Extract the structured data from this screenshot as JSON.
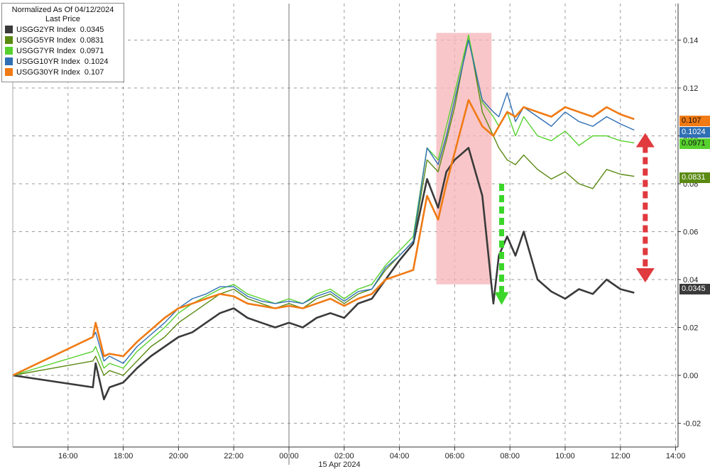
{
  "legend": {
    "title": "Normalized As Of 04/12/2024",
    "subtitle": "Last Price",
    "items": [
      {
        "name": "USGG2YR Index",
        "value": "0.0345",
        "color": "#3a3a3a"
      },
      {
        "name": "USGG5YR Index",
        "value": "0.0831",
        "color": "#5a8a12"
      },
      {
        "name": "USGG7YR Index",
        "value": "0.0971",
        "color": "#57d12e"
      },
      {
        "name": "USGG10YR Index",
        "value": "0.1024",
        "color": "#2f6fb3"
      },
      {
        "name": "USGG30YR Index",
        "value": "0.107",
        "color": "#f07a14"
      }
    ]
  },
  "date_label": "15 Apr 2024",
  "chart_data": {
    "type": "line",
    "x_ticks": [
      "16:00",
      "18:00",
      "20:00",
      "22:00",
      "00:00",
      "02:00",
      "04:00",
      "06:00",
      "08:00",
      "10:00",
      "12:00",
      "14:00"
    ],
    "y_ticks": [
      "0.14",
      "0.12",
      "0.10",
      "0.08",
      "0.06",
      "0.04",
      "0.02",
      "0.00",
      "-0.02"
    ],
    "ylim": [
      -0.03,
      0.155
    ],
    "grid": true,
    "legend_position": "top-left",
    "highlight_band": {
      "from": "05:20",
      "to": "07:20"
    },
    "x_hours": [
      14.0,
      16.9,
      17.0,
      17.3,
      17.5,
      18.0,
      18.5,
      19.0,
      19.5,
      20.0,
      20.5,
      21.0,
      21.5,
      22.0,
      22.5,
      23.0,
      23.5,
      24.0,
      24.5,
      25.0,
      25.5,
      26.0,
      26.5,
      27.0,
      27.5,
      28.0,
      28.5,
      29.0,
      29.4,
      29.7,
      30.0,
      30.5,
      31.0,
      31.4,
      31.6,
      31.9,
      32.2,
      32.5,
      33.0,
      33.5,
      34.0,
      34.5,
      35.0,
      35.5,
      36.0,
      36.5
    ],
    "series": [
      {
        "name": "USGG2YR Index",
        "color": "#3a3a3a",
        "values": [
          0.0,
          -0.005,
          0.005,
          -0.01,
          -0.005,
          -0.003,
          0.003,
          0.008,
          0.012,
          0.016,
          0.018,
          0.022,
          0.026,
          0.028,
          0.024,
          0.022,
          0.02,
          0.022,
          0.02,
          0.024,
          0.026,
          0.024,
          0.03,
          0.032,
          0.04,
          0.048,
          0.055,
          0.082,
          0.07,
          0.085,
          0.09,
          0.095,
          0.075,
          0.03,
          0.05,
          0.058,
          0.05,
          0.06,
          0.04,
          0.035,
          0.032,
          0.036,
          0.034,
          0.04,
          0.036,
          0.0345
        ]
      },
      {
        "name": "USGG5YR Index",
        "color": "#5a8a12",
        "values": [
          0.0,
          0.006,
          0.008,
          0.0,
          0.002,
          0.0,
          0.006,
          0.012,
          0.016,
          0.022,
          0.026,
          0.03,
          0.034,
          0.036,
          0.032,
          0.03,
          0.028,
          0.03,
          0.028,
          0.032,
          0.034,
          0.03,
          0.034,
          0.036,
          0.044,
          0.05,
          0.056,
          0.09,
          0.085,
          0.098,
          0.112,
          0.142,
          0.11,
          0.1,
          0.095,
          0.09,
          0.088,
          0.092,
          0.086,
          0.082,
          0.085,
          0.08,
          0.078,
          0.086,
          0.084,
          0.0831
        ]
      },
      {
        "name": "USGG7YR Index",
        "color": "#57d12e",
        "values": [
          0.0,
          0.01,
          0.012,
          0.003,
          0.005,
          0.003,
          0.01,
          0.015,
          0.02,
          0.026,
          0.03,
          0.033,
          0.036,
          0.038,
          0.034,
          0.032,
          0.03,
          0.032,
          0.03,
          0.034,
          0.036,
          0.032,
          0.036,
          0.038,
          0.046,
          0.052,
          0.058,
          0.095,
          0.09,
          0.104,
          0.118,
          0.142,
          0.114,
          0.108,
          0.104,
          0.11,
          0.1,
          0.108,
          0.1,
          0.098,
          0.102,
          0.096,
          0.1,
          0.1,
          0.098,
          0.0971
        ]
      },
      {
        "name": "USGG10YR Index",
        "color": "#2f6fb3",
        "values": [
          0.0,
          0.016,
          0.018,
          0.006,
          0.008,
          0.005,
          0.012,
          0.017,
          0.022,
          0.028,
          0.032,
          0.034,
          0.037,
          0.037,
          0.033,
          0.031,
          0.03,
          0.031,
          0.03,
          0.033,
          0.035,
          0.031,
          0.035,
          0.036,
          0.045,
          0.05,
          0.056,
          0.095,
          0.088,
          0.1,
          0.115,
          0.14,
          0.115,
          0.11,
          0.108,
          0.118,
          0.106,
          0.112,
          0.108,
          0.104,
          0.11,
          0.106,
          0.104,
          0.108,
          0.105,
          0.1024
        ]
      },
      {
        "name": "USGG30YR Index",
        "color": "#f07a14",
        "values": [
          0.0,
          0.016,
          0.022,
          0.008,
          0.009,
          0.008,
          0.014,
          0.019,
          0.024,
          0.028,
          0.03,
          0.032,
          0.034,
          0.033,
          0.03,
          0.029,
          0.028,
          0.029,
          0.028,
          0.03,
          0.032,
          0.029,
          0.032,
          0.034,
          0.04,
          0.042,
          0.044,
          0.075,
          0.065,
          0.08,
          0.093,
          0.115,
          0.104,
          0.1,
          0.104,
          0.11,
          0.108,
          0.112,
          0.11,
          0.108,
          0.112,
          0.11,
          0.108,
          0.112,
          0.109,
          0.107
        ]
      }
    ],
    "end_labels": [
      {
        "text": "0.107",
        "color": "#f07a14",
        "value": 0.107
      },
      {
        "text": "0.1024",
        "color": "#2f6fb3",
        "value": 0.1024
      },
      {
        "text": "0.0971",
        "color": "#57d12e",
        "value": 0.0971
      },
      {
        "text": "0.0831",
        "color": "#5a8a12",
        "value": 0.0831
      },
      {
        "text": "0.0345",
        "color": "#3a3a3a",
        "value": 0.0345
      }
    ],
    "annotations": {
      "green_arrow": {
        "hour": 31.7,
        "from": 0.08,
        "to": 0.03,
        "color": "#3bd62a"
      },
      "red_arrow": {
        "hour": 36.9,
        "from": 0.1,
        "to": 0.04,
        "color": "#e0393e"
      }
    }
  }
}
